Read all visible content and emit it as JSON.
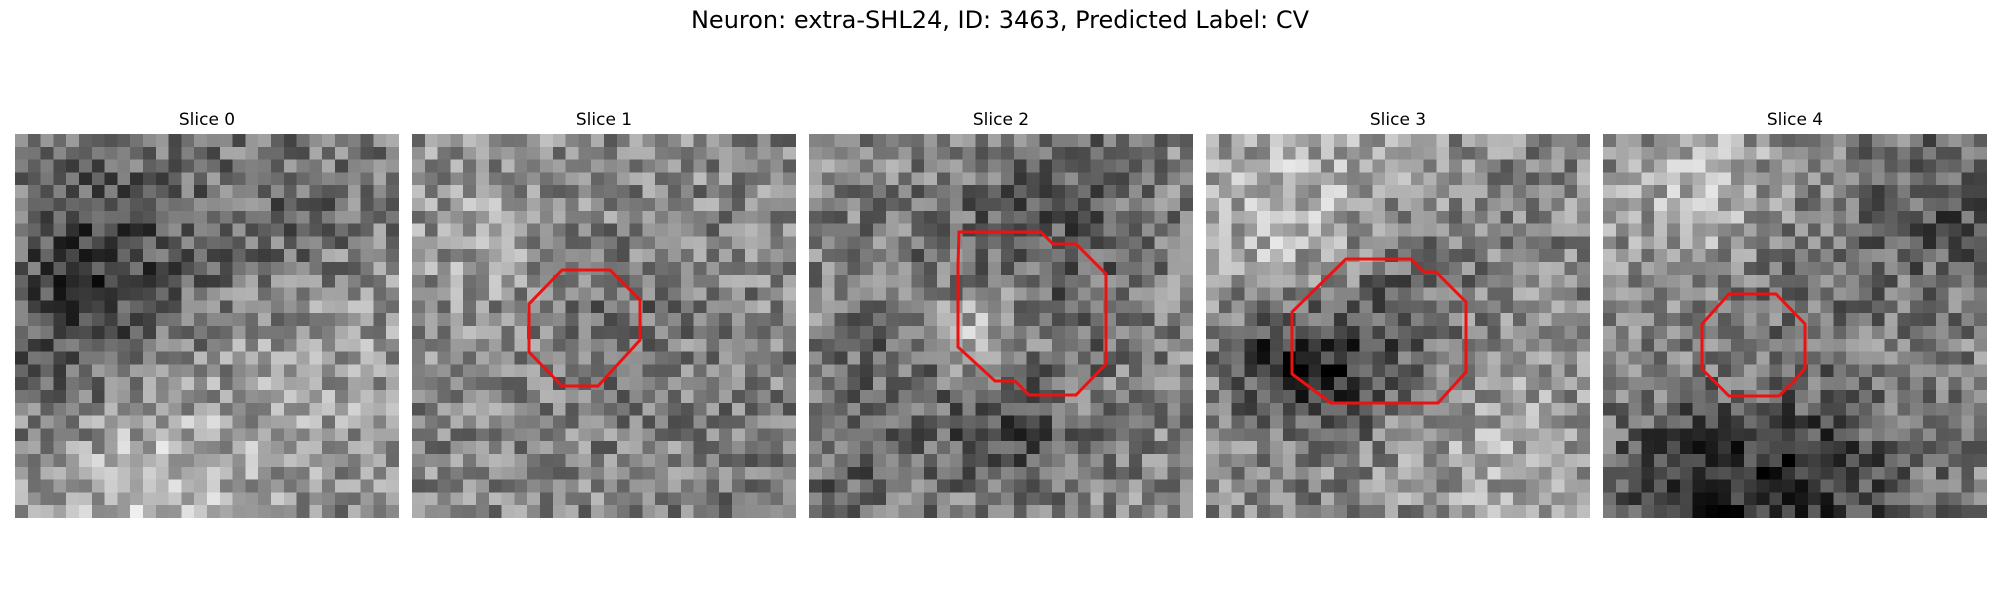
{
  "figure": {
    "title": "Neuron: extra-SHL24, ID: 3463, Predicted Label: CV"
  },
  "panels": [
    {
      "title": "Slice 0",
      "roi_color": "#ee1111"
    },
    {
      "title": "Slice 1",
      "roi_color": "#ee1111"
    },
    {
      "title": "Slice 2",
      "roi_color": "#ee1111"
    },
    {
      "title": "Slice 3",
      "roi_color": "#ee1111"
    },
    {
      "title": "Slice 4",
      "roi_color": "#ee1111"
    }
  ],
  "colormap": "gray"
}
